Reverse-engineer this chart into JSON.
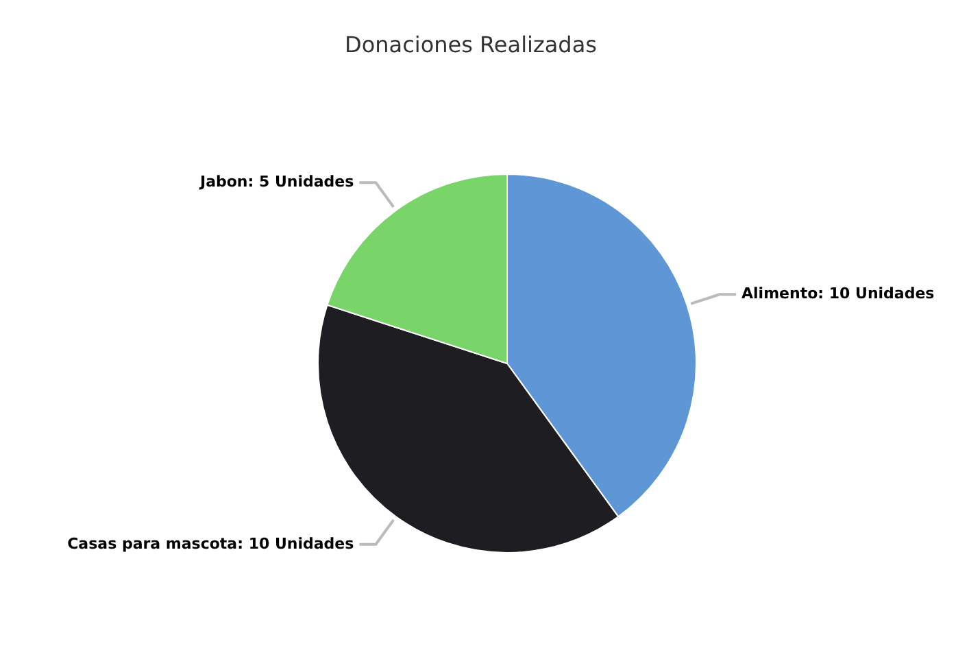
{
  "chart_data": {
    "type": "pie",
    "title": "Donaciones Realizadas",
    "categories": [
      "Alimento",
      "Casas para mascota",
      "Jabon"
    ],
    "values": [
      10,
      10,
      5
    ],
    "colors": [
      "#5f97d6",
      "#1e1e22",
      "#79d46a"
    ],
    "value_labels": [
      "10 Unidades",
      "10 Unidades",
      "5 Unidades"
    ]
  }
}
